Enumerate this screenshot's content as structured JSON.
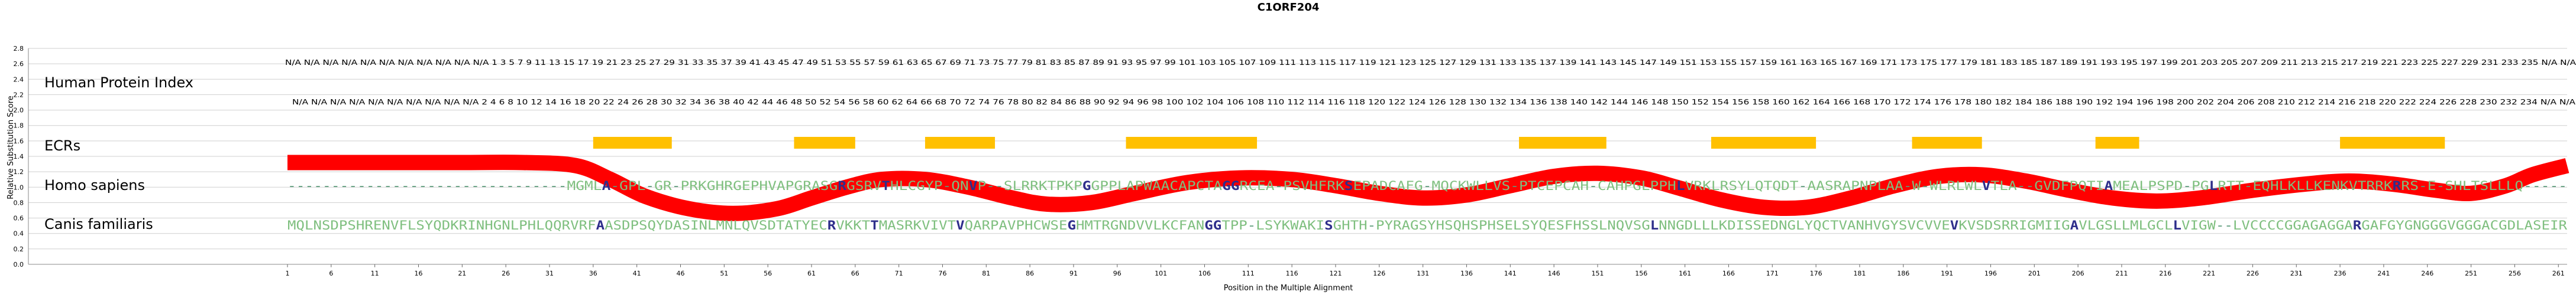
{
  "chart_data": {
    "type": "line",
    "title": "C1ORF204",
    "xlabel": "Position in the Multiple Alignment",
    "ylabel": "Relative Substitution Score",
    "ylim": [
      0,
      2.8
    ],
    "yticks": [
      "0.0",
      "0.2",
      "0.4",
      "0.6",
      "0.8",
      "1.0",
      "1.2",
      "1.4",
      "1.6",
      "1.8",
      "2.0",
      "2.2",
      "2.4",
      "2.6",
      "2.8"
    ],
    "xlim": [
      1,
      262
    ],
    "xticks": [
      1,
      6,
      11,
      16,
      21,
      26,
      31,
      36,
      41,
      46,
      51,
      56,
      61,
      66,
      71,
      76,
      81,
      86,
      91,
      96,
      101,
      106,
      111,
      116,
      121,
      126,
      131,
      136,
      141,
      146,
      151,
      156,
      161,
      166,
      171,
      176,
      181,
      186,
      191,
      196,
      201,
      206,
      211,
      216,
      221,
      226,
      231,
      236,
      241,
      246,
      251,
      256,
      261
    ],
    "row_labels": {
      "index": "Human Protein Index",
      "ecrs": "ECRs",
      "homo": "Homo sapiens",
      "canis": "Canis familiaris"
    },
    "human_index_odd": "N/A N/A N/A N/A N/A N/A N/A N/A N/A N/A N/A 1 3 5 7 9 11 13 15 17 19 21 23 25 27 29 31 33 35 37 39 41 43 45 47 49 51 53 55 57 59 61 63 65 67 69 71 73 75 77 79 81 83 85 87 89 91 93 95 97 99 101 103 105 107 109 111 113 115 117 119 121 123 125 127 129 131 133 135 137 139 141 143 145 147 149 151 153 155 157 159 161 163 165 167 169 171 173 175 177 179 181 183 185 187 189 191 193 195 197 199 201 203 205 207 209 211 213 215 217 219 221 223 225 227 229 231 233 235 N/A N/A",
    "human_index_even": "N/A N/A N/A N/A N/A N/A N/A N/A N/A N/A 2 4 6 8 10 12 14 16 18 20 22 24 26 28 30 32 34 36 38 40 42 44 46 48 50 52 54 56 58 60 62 64 66 68 70 72 74 76 78 80 82 84 86 88 90 92 94 96 98 100 102 104 106 108 110 112 114 116 118 120 122 124 126 128 130 132 134 136 138 140 142 144 146 148 150 152 154 156 158 160 162 164 166 168 170 172 174 176 178 180 182 184 186 188 190 192 194 196 198 200 202 204 206 208 210 212 214 216 218 220 222 224 226 228 230 232 234 N/A N/A",
    "ecr_regions": [
      [
        36,
        45
      ],
      [
        59,
        66
      ],
      [
        74,
        82
      ],
      [
        97,
        112
      ],
      [
        142,
        152
      ],
      [
        164,
        176
      ],
      [
        187,
        195
      ],
      [
        208,
        213
      ],
      [
        236,
        248
      ]
    ],
    "series": [
      {
        "values": [
          [
            1,
            1.32
          ],
          [
            20,
            1.32
          ],
          [
            28,
            1.32
          ],
          [
            34,
            1.28
          ],
          [
            38,
            1.1
          ],
          [
            42,
            0.88
          ],
          [
            47,
            0.72
          ],
          [
            52,
            0.66
          ],
          [
            57,
            0.72
          ],
          [
            61,
            0.86
          ],
          [
            65,
            1.0
          ],
          [
            69,
            1.1
          ],
          [
            74,
            1.1
          ],
          [
            79,
            1.0
          ],
          [
            84,
            0.86
          ],
          [
            88,
            0.78
          ],
          [
            93,
            0.8
          ],
          [
            98,
            0.92
          ],
          [
            104,
            1.06
          ],
          [
            110,
            1.12
          ],
          [
            116,
            1.1
          ],
          [
            121,
            1.02
          ],
          [
            126,
            0.92
          ],
          [
            131,
            0.86
          ],
          [
            136,
            0.9
          ],
          [
            141,
            1.02
          ],
          [
            146,
            1.14
          ],
          [
            151,
            1.18
          ],
          [
            156,
            1.12
          ],
          [
            160,
            1.0
          ],
          [
            165,
            0.84
          ],
          [
            170,
            0.74
          ],
          [
            175,
            0.74
          ],
          [
            180,
            0.86
          ],
          [
            185,
            1.02
          ],
          [
            190,
            1.14
          ],
          [
            195,
            1.16
          ],
          [
            200,
            1.08
          ],
          [
            205,
            0.96
          ],
          [
            210,
            0.86
          ],
          [
            215,
            0.82
          ],
          [
            220,
            0.86
          ],
          [
            226,
            0.96
          ],
          [
            232,
            1.04
          ],
          [
            237,
            1.08
          ],
          [
            242,
            1.04
          ],
          [
            247,
            0.96
          ],
          [
            251,
            0.92
          ],
          [
            255,
            1.02
          ],
          [
            258,
            1.16
          ],
          [
            262,
            1.28
          ]
        ]
      }
    ],
    "homo_seq": "--------------------------------MGMLA-GPL-GR-PRKGHRGEPHVAPGRASGRGSRVTHLCGYP-QNVP--SLRRKTPKPGGPPLAPWAACAPCTAGGRCEA-PSVHFRKSEPADCAFG-MQCKWLLVS-PTCEPCAH-CAHPGLPPHLVRKLRSYLQTQDT-AASRAPNPLAA-W-WLRLWLVTLA--GVDFPQTIAMEALPSPD-PGLRTT-EQHLKLLKENKVTRRKRRS-E-SHLTSLLLQ-----",
    "canis_seq": "MQLNSDPSHRENVFLSYQDKRINHGNLPHLQQRVRFAASDPSQYDASINLMNLQVSDTATYECRVKKTTMASRKVIVTVQARPAVPHCWSEGHMTRGNDVVLKCFANGGTPP-LSYKWAKISGHTH-PYRAGSYHSQHSPHSELSYQESFHSSLNQVSGLNNGDLLLKDISSEDNGLYQCTVANHVGYSVCVVEVKVSDSRRIGMIIGAVLGSLLMLGCLLVIGW--LVCCCCGGAGAGGARGAFGYGNGGGVGGGACGDLASEIR",
    "colors": {
      "curve": "#ff0000",
      "ecr": "#ffc000",
      "seq_conserved": "#2e2e8b",
      "seq_similar": "#5a9a78",
      "seq_default": "#7fbf7f",
      "grid": "#cfcfcf"
    }
  }
}
